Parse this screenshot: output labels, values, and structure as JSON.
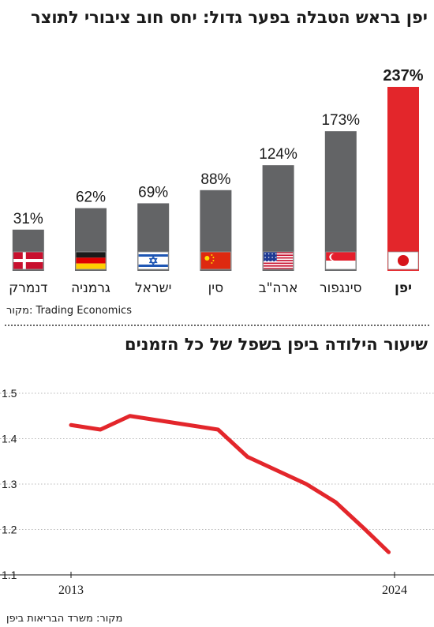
{
  "chart_data": [
    {
      "type": "bar",
      "title": "יפן בראש הטבלה בפער גדול: יחס חוב ציבורי לתוצר",
      "categories": [
        "יפן",
        "סינגפור",
        "ארה\"ב",
        "סין",
        "ישראל",
        "גרמניה",
        "דנמרק"
      ],
      "values": [
        237,
        173,
        124,
        88,
        69,
        62,
        31
      ],
      "value_labels": [
        "237%",
        "173%",
        "124%",
        "88%",
        "69%",
        "62%",
        "31%"
      ],
      "flags": [
        "japan-flag-icon",
        "singapore-flag-icon",
        "usa-flag-icon",
        "china-flag-icon",
        "israel-flag-icon",
        "germany-flag-icon",
        "denmark-flag-icon"
      ],
      "highlight_index": 0,
      "colors": {
        "highlight": "#e3262b",
        "default": "#636466"
      },
      "source": "מקור: Trading Economics",
      "ylim": [
        0,
        237
      ]
    },
    {
      "type": "line",
      "title": "שיעור הילודה ביפן בשפל של כל הזמנים",
      "x": [
        2013,
        2014,
        2015,
        2016,
        2017,
        2018,
        2019,
        2020,
        2021,
        2022,
        2023
      ],
      "y": [
        1.43,
        1.42,
        1.45,
        1.44,
        1.43,
        1.42,
        1.36,
        1.33,
        1.3,
        1.26,
        1.2
      ],
      "y_end": 1.15,
      "x_tick_labels": [
        "2013",
        "2024"
      ],
      "y_ticks": [
        1.1,
        1.2,
        1.3,
        1.4,
        1.5
      ],
      "y_tick_labels": [
        "1.1",
        "1.2",
        "1.3",
        "1.4",
        "1.5"
      ],
      "ylim": [
        1.1,
        1.5
      ],
      "color": "#e3262b",
      "source": "מקור: משרד הבריאות ביפן"
    }
  ]
}
